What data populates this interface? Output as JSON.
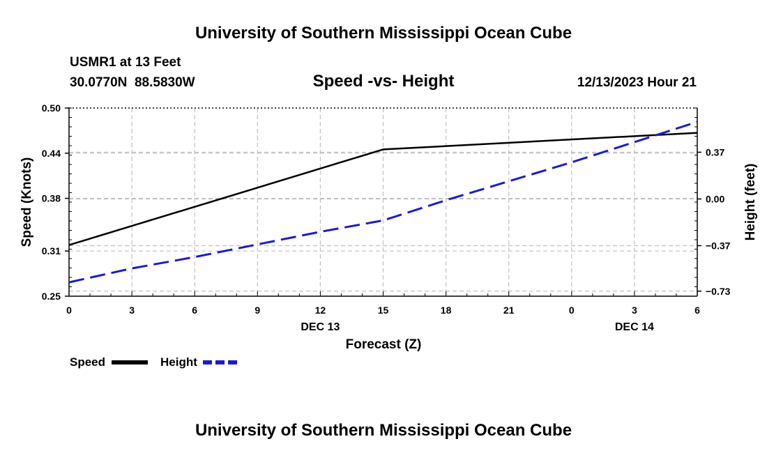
{
  "header": {
    "main_title": "University of Southern Mississippi Ocean Cube",
    "station": "USMR1 at 13 Feet",
    "coords": "30.0770N  88.5830W",
    "chart_title": "Speed -vs- Height",
    "date": "12/13/2023 Hour 21",
    "footer_title": "University of Southern Mississippi Ocean Cube"
  },
  "chart_data": {
    "type": "line",
    "title": "Speed -vs- Height",
    "xlabel": "Forecast (Z)",
    "ylabel": "Speed (Knots)",
    "y2label": "Height (feet)",
    "x": [
      0,
      3,
      6,
      9,
      12,
      15,
      18,
      21,
      24,
      27,
      30
    ],
    "x_tick_labels": [
      "0",
      "3",
      "6",
      "9",
      "12",
      "15",
      "18",
      "21",
      "0",
      "3",
      "6"
    ],
    "date_labels": [
      {
        "x": 12,
        "label": "DEC 13"
      },
      {
        "x": 27,
        "label": "DEC 14"
      }
    ],
    "xlim": [
      0,
      30
    ],
    "ylim": [
      0.25,
      0.5
    ],
    "y_ticks": [
      0.25,
      0.31,
      0.38,
      0.44,
      0.5
    ],
    "y_tick_labels": [
      "0.25",
      "0.31",
      "0.38",
      "0.44",
      "0.50"
    ],
    "y2lim": [
      -0.77,
      0.72
    ],
    "y2_ticks": [
      -0.73,
      -0.37,
      0.0,
      0.37
    ],
    "y2_tick_labels": [
      "−0.73",
      "−0.37",
      "0.00",
      "0.37"
    ],
    "grid": true,
    "series": [
      {
        "name": "Speed",
        "axis": "left",
        "color": "#000000",
        "dash": "solid",
        "x": [
          0,
          15,
          30
        ],
        "values": [
          0.318,
          0.445,
          0.467
        ]
      },
      {
        "name": "Height",
        "axis": "right",
        "color": "#1c1cc8",
        "dash": "dashed",
        "x": [
          0,
          3,
          6,
          9,
          12,
          15,
          18,
          21,
          24,
          27,
          30
        ],
        "values": [
          -0.66,
          -0.55,
          -0.46,
          -0.36,
          -0.26,
          -0.17,
          -0.01,
          0.14,
          0.29,
          0.45,
          0.61
        ]
      }
    ],
    "legend": {
      "placement": "bottom-left",
      "items": [
        {
          "label": "Speed",
          "color": "#000000",
          "dash": "solid"
        },
        {
          "label": "Height",
          "color": "#1c1cc8",
          "dash": "dashed"
        }
      ]
    }
  }
}
